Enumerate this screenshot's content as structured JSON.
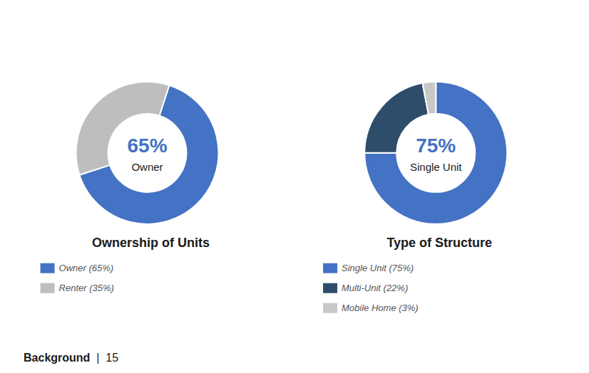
{
  "chart_data": [
    {
      "type": "donut",
      "title": "Ownership of Units",
      "categories": [
        "Owner (65%)",
        "Renter (35%)"
      ],
      "values": [
        65,
        35
      ],
      "colors": [
        "#4472C4",
        "#BEBEBE"
      ],
      "annotations": [
        "65%",
        "Owner"
      ],
      "legend": "bottom"
    },
    {
      "type": "donut",
      "title": "Type of Structure",
      "categories": [
        "Single Unit (75%)",
        "Multi-Unit (22%)",
        "Mobile Home (3%)"
      ],
      "values": [
        75,
        22,
        3
      ],
      "colors": [
        "#4472C4",
        "#2E4D6B",
        "#C8C8C8"
      ],
      "annotations": [
        "75%",
        "Single Unit"
      ],
      "legend": "bottom"
    }
  ],
  "annotations": [
    "Background",
    "|",
    "15"
  ]
}
